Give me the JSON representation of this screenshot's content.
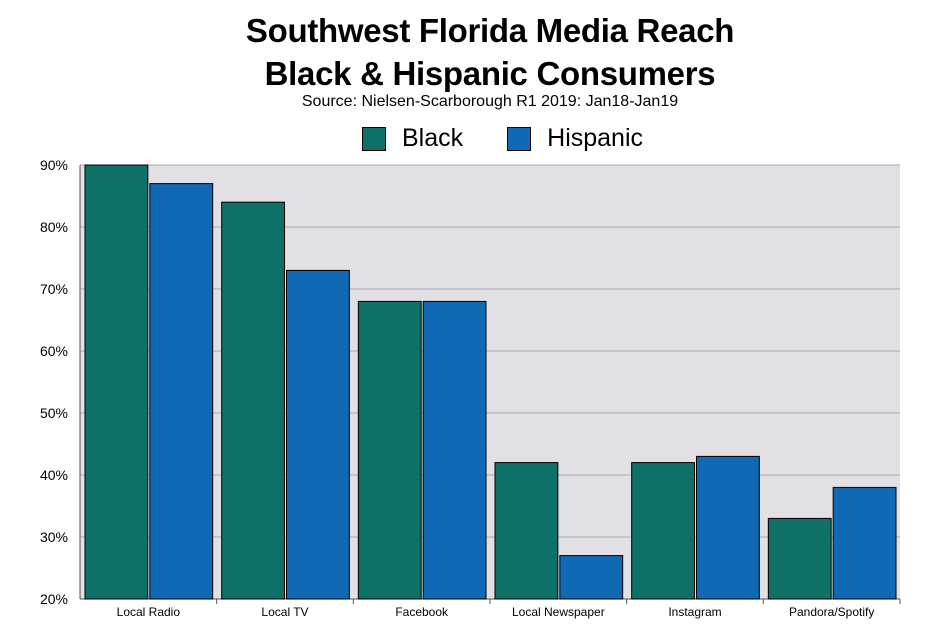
{
  "chart_data": {
    "type": "bar",
    "title": "Southwest Florida Media Reach",
    "title_line2": "Black & Hispanic Consumers",
    "subtitle": "Source: Nielsen-Scarborough R1 2019: Jan18-Jan19",
    "categories": [
      "Local Radio",
      "Local TV",
      "Facebook",
      "Local Newspaper",
      "Instagram",
      "Pandora/Spotify"
    ],
    "series": [
      {
        "name": "Black",
        "color": "#0f7068",
        "values": [
          90,
          84,
          68,
          42,
          42,
          33
        ]
      },
      {
        "name": "Hispanic",
        "color": "#0f69b4",
        "values": [
          87,
          73,
          68,
          27,
          43,
          38
        ]
      }
    ],
    "ylim": [
      20,
      90
    ],
    "yticks": [
      20,
      30,
      40,
      50,
      60,
      70,
      80,
      90
    ],
    "ytick_labels": [
      "20%",
      "30%",
      "40%",
      "50%",
      "60%",
      "70%",
      "80%",
      "90%"
    ],
    "xlabel": "",
    "ylabel": "",
    "grid": true,
    "legend_position": "top-center",
    "plot_background": "#e2e0e5"
  }
}
